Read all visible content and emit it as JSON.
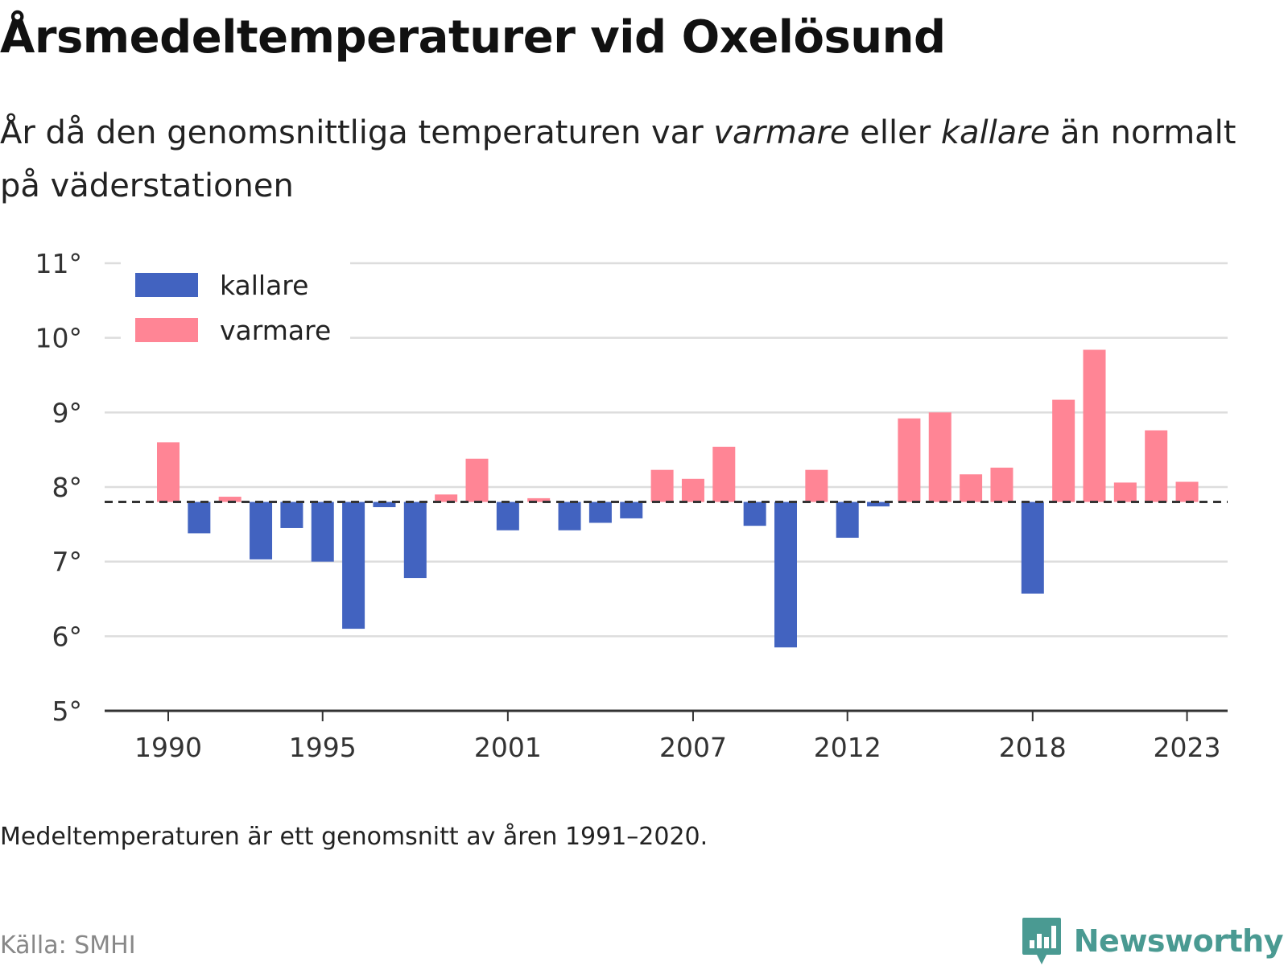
{
  "title": "Årsmedeltemperaturer vid Oxelösund",
  "subtitle": {
    "prefix": "År då den genomsnittliga temperaturen var ",
    "warm_word": "varmare",
    "middle": " eller ",
    "cold_word": "kallare",
    "suffix": " än normalt på väderstationen"
  },
  "footnote": "Medeltemperaturen är ett genomsnitt av åren 1991–2020.",
  "source": "Källa: SMHI",
  "brand": {
    "name": "Newsworthy",
    "icon": "bar-chart-chat-icon",
    "color": "#4a9a92"
  },
  "colors": {
    "kallare": "#4263c0",
    "varmare": "#ff8595",
    "grid": "#dddddd",
    "axis": "#333333",
    "reference": "#333333"
  },
  "chart_data": {
    "type": "bar",
    "baseline": 7.8,
    "ylim": [
      5,
      11
    ],
    "yticks": [
      5,
      6,
      7,
      8,
      9,
      10,
      11
    ],
    "ytick_suffix": "°",
    "xticks": [
      1990,
      1995,
      2001,
      2007,
      2012,
      2018,
      2023
    ],
    "grid": true,
    "legend": {
      "placement": "top-left",
      "entries": [
        {
          "name": "kallare",
          "color": "#4263c0"
        },
        {
          "name": "varmare",
          "color": "#ff8595"
        }
      ]
    },
    "series": [
      {
        "name": "kallare",
        "points": [
          {
            "year": 1991,
            "value": 7.38
          },
          {
            "year": 1993,
            "value": 7.03
          },
          {
            "year": 1994,
            "value": 7.45
          },
          {
            "year": 1995,
            "value": 7.0
          },
          {
            "year": 1996,
            "value": 6.1
          },
          {
            "year": 1997,
            "value": 7.73
          },
          {
            "year": 1998,
            "value": 6.78
          },
          {
            "year": 2001,
            "value": 7.42
          },
          {
            "year": 2003,
            "value": 7.42
          },
          {
            "year": 2004,
            "value": 7.52
          },
          {
            "year": 2005,
            "value": 7.58
          },
          {
            "year": 2009,
            "value": 7.48
          },
          {
            "year": 2010,
            "value": 5.85
          },
          {
            "year": 2012,
            "value": 7.32
          },
          {
            "year": 2013,
            "value": 7.74
          },
          {
            "year": 2018,
            "value": 6.57
          }
        ]
      },
      {
        "name": "varmare",
        "points": [
          {
            "year": 1990,
            "value": 8.6
          },
          {
            "year": 1992,
            "value": 7.87
          },
          {
            "year": 1999,
            "value": 7.9
          },
          {
            "year": 2000,
            "value": 8.38
          },
          {
            "year": 2002,
            "value": 7.85
          },
          {
            "year": 2006,
            "value": 8.23
          },
          {
            "year": 2007,
            "value": 8.11
          },
          {
            "year": 2008,
            "value": 8.54
          },
          {
            "year": 2011,
            "value": 8.23
          },
          {
            "year": 2014,
            "value": 8.92
          },
          {
            "year": 2015,
            "value": 9.0
          },
          {
            "year": 2016,
            "value": 8.17
          },
          {
            "year": 2017,
            "value": 8.26
          },
          {
            "year": 2019,
            "value": 9.17
          },
          {
            "year": 2020,
            "value": 9.84
          },
          {
            "year": 2021,
            "value": 8.06
          },
          {
            "year": 2022,
            "value": 8.76
          },
          {
            "year": 2023,
            "value": 8.07
          }
        ]
      }
    ]
  }
}
